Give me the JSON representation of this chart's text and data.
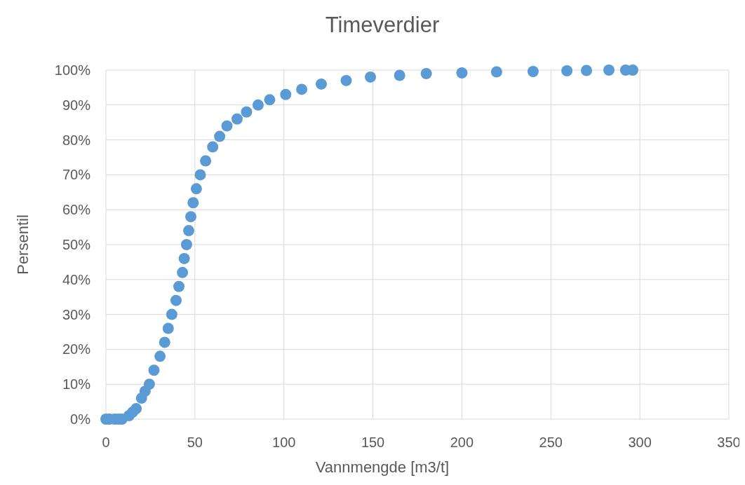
{
  "chart_data": {
    "type": "scatter",
    "title": "Timeverdier",
    "xlabel": "Vannmengde [m3/t]",
    "ylabel": "Persentil",
    "x": [
      0,
      2,
      5,
      7,
      9,
      13,
      15,
      17,
      20,
      22,
      24.4,
      27,
      30.4,
      33,
      35,
      37,
      39.4,
      41,
      43,
      44,
      45.3,
      46.5,
      47.7,
      49,
      50.8,
      53,
      56,
      60,
      63.9,
      68,
      73.7,
      79,
      85.5,
      92,
      101,
      110,
      121,
      135,
      148.6,
      165,
      180,
      200,
      219.5,
      240,
      259,
      270,
      282.6,
      292,
      296
    ],
    "series": [
      {
        "color": "#5b9bd5",
        "values": [
          0,
          0,
          0,
          0,
          0,
          1,
          2,
          3,
          6,
          8,
          10,
          14,
          18,
          22,
          26,
          30,
          34,
          38,
          42,
          46,
          50,
          54,
          58,
          62,
          66,
          70,
          74,
          78,
          81,
          84,
          86,
          88,
          90,
          91.5,
          93,
          94.5,
          96,
          97,
          98,
          98.5,
          99,
          99.2,
          99.5,
          99.6,
          99.8,
          99.9,
          100,
          100,
          100
        ]
      }
    ],
    "xlim": [
      0,
      350
    ],
    "xticks": [
      0,
      50,
      100,
      150,
      200,
      250,
      300,
      350
    ],
    "ylim": [
      0,
      100
    ],
    "yticks": [
      {
        "value": 0,
        "label": "0%"
      },
      {
        "value": 10,
        "label": "10%"
      },
      {
        "value": 20,
        "label": "20%"
      },
      {
        "value": 30,
        "label": "30%"
      },
      {
        "value": 40,
        "label": "40%"
      },
      {
        "value": 50,
        "label": "50%"
      },
      {
        "value": 60,
        "label": "60%"
      },
      {
        "value": 70,
        "label": "70%"
      },
      {
        "value": 80,
        "label": "80%"
      },
      {
        "value": 90,
        "label": "90%"
      },
      {
        "value": 100,
        "label": "100%"
      }
    ],
    "grid": true,
    "marker": "circle"
  }
}
